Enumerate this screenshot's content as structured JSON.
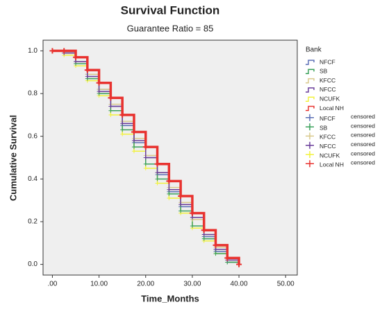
{
  "chart_data": {
    "type": "step",
    "title": "Survival Function",
    "subtitle": "Guarantee Ratio = 85",
    "x_label": "Time_Months",
    "y_label": "Cumulative Survival",
    "legend_title": "Bank",
    "x": [
      0,
      2.5,
      5,
      7.5,
      10,
      12.5,
      15,
      17.5,
      20,
      22.5,
      25,
      27.5,
      30,
      32.5,
      35,
      37.5,
      40
    ],
    "series": [
      {
        "name": "NFCF",
        "color": "#5b6fb5",
        "values": [
          1.0,
          0.99,
          0.95,
          0.89,
          0.82,
          0.74,
          0.65,
          0.57,
          0.5,
          0.42,
          0.34,
          0.27,
          0.22,
          0.13,
          0.06,
          0.01,
          0.0
        ]
      },
      {
        "name": "SB",
        "color": "#3aa05a",
        "values": [
          1.0,
          0.99,
          0.94,
          0.87,
          0.8,
          0.72,
          0.63,
          0.55,
          0.47,
          0.4,
          0.33,
          0.25,
          0.18,
          0.12,
          0.05,
          0.01,
          0.0
        ]
      },
      {
        "name": "KFCC",
        "color": "#d9c98c",
        "values": [
          1.0,
          0.99,
          0.95,
          0.89,
          0.82,
          0.75,
          0.67,
          0.59,
          0.51,
          0.43,
          0.36,
          0.29,
          0.21,
          0.14,
          0.08,
          0.03,
          0.0
        ]
      },
      {
        "name": "NFCC",
        "color": "#6a3d9a",
        "values": [
          1.0,
          0.99,
          0.95,
          0.88,
          0.81,
          0.74,
          0.66,
          0.58,
          0.5,
          0.43,
          0.35,
          0.28,
          0.22,
          0.14,
          0.07,
          0.02,
          0.0
        ]
      },
      {
        "name": "NCUFK",
        "color": "#f2f23a",
        "values": [
          1.0,
          0.98,
          0.93,
          0.86,
          0.79,
          0.7,
          0.61,
          0.53,
          0.45,
          0.38,
          0.31,
          0.24,
          0.17,
          0.11,
          0.05,
          0.01,
          0.0
        ]
      },
      {
        "name": "Local NH",
        "color": "#e8322f",
        "values": [
          1.0,
          1.0,
          0.97,
          0.91,
          0.85,
          0.78,
          0.7,
          0.62,
          0.55,
          0.47,
          0.39,
          0.32,
          0.24,
          0.16,
          0.09,
          0.03,
          0.0
        ]
      }
    ],
    "censored_legend": [
      {
        "name": "NFCF",
        "label": "censored",
        "color": "#5b6fb5"
      },
      {
        "name": "SB",
        "label": "censored",
        "color": "#3aa05a"
      },
      {
        "name": "KFCC",
        "label": "censored",
        "color": "#d9c98c"
      },
      {
        "name": "NFCC",
        "label": "censored",
        "color": "#6a3d9a"
      },
      {
        "name": "NCUFK",
        "label": "censored",
        "color": "#f2f23a"
      },
      {
        "name": "Local NH",
        "label": "censored",
        "color": "#e8322f"
      }
    ],
    "xlim": [
      -2,
      52.5
    ],
    "ylim": [
      -0.05,
      1.05
    ],
    "xticks": [
      {
        "value": 0,
        "label": ".00"
      },
      {
        "value": 10,
        "label": "10.00"
      },
      {
        "value": 20,
        "label": "20.00"
      },
      {
        "value": 30,
        "label": "30.00"
      },
      {
        "value": 40,
        "label": "40.00"
      },
      {
        "value": 50,
        "label": "50.00"
      }
    ],
    "yticks": [
      {
        "value": 0,
        "label": "0.0"
      },
      0.2,
      0.4,
      0.6,
      0.8,
      {
        "value": 1,
        "label": "1.0"
      }
    ]
  }
}
